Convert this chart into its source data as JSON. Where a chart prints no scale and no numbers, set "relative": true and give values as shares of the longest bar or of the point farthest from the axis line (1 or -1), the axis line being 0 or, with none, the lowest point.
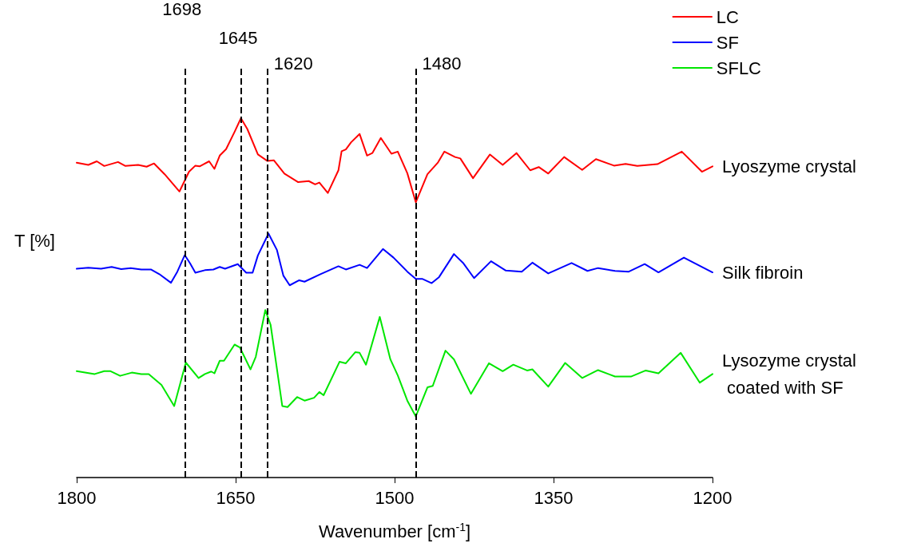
{
  "chart_data": {
    "type": "line",
    "relative": true,
    "xlabel": "Wavenumber [cm$^{-1}$]",
    "ylabel": "T [%]",
    "xlim": [
      1800,
      1200
    ],
    "xticks": [
      1800,
      1650,
      1500,
      1350,
      1200
    ],
    "grid": false,
    "legend": "top right",
    "marker": "none",
    "line_style": "solid",
    "series": [
      {
        "name": "LC",
        "color": "#ff0000",
        "x": [
          1800,
          1789,
          1781,
          1774,
          1761,
          1754,
          1742,
          1734,
          1727,
          1717,
          1703,
          1694,
          1688,
          1684,
          1675,
          1670,
          1665,
          1659,
          1651,
          1645,
          1639,
          1629,
          1620,
          1614,
          1604,
          1591,
          1581,
          1575,
          1571,
          1563,
          1553,
          1550,
          1546,
          1541,
          1533,
          1526,
          1521,
          1513,
          1503,
          1497,
          1488,
          1480,
          1469,
          1459,
          1453,
          1443,
          1438,
          1426,
          1410,
          1398,
          1385,
          1372,
          1364,
          1355,
          1340,
          1323,
          1310,
          1293,
          1282,
          1271,
          1252,
          1229,
          1210,
          1200
        ],
        "values": [
          0.876,
          0.87,
          0.88,
          0.867,
          0.878,
          0.867,
          0.87,
          0.865,
          0.874,
          0.844,
          0.796,
          0.851,
          0.868,
          0.866,
          0.88,
          0.859,
          0.896,
          0.914,
          0.962,
          1,
          0.97,
          0.899,
          0.881,
          0.883,
          0.846,
          0.822,
          0.825,
          0.816,
          0.821,
          0.792,
          0.855,
          0.908,
          0.913,
          0.933,
          0.956,
          0.896,
          0.903,
          0.945,
          0.901,
          0.907,
          0.847,
          0.766,
          0.844,
          0.877,
          0.907,
          0.892,
          0.888,
          0.833,
          0.899,
          0.87,
          0.903,
          0.855,
          0.864,
          0.846,
          0.892,
          0.856,
          0.886,
          0.868,
          0.873,
          0.867,
          0.872,
          0.907,
          0.851,
          0.866
        ]
      },
      {
        "name": "SF",
        "color": "#0000ff",
        "x": [
          1800,
          1789,
          1777,
          1767,
          1758,
          1749,
          1739,
          1730,
          1722,
          1711,
          1705,
          1698,
          1693,
          1688,
          1679,
          1671,
          1665,
          1660,
          1648,
          1640,
          1634,
          1629,
          1619,
          1611,
          1605,
          1599,
          1590,
          1585,
          1570,
          1553,
          1546,
          1533,
          1526,
          1511,
          1501,
          1488,
          1480,
          1474,
          1465,
          1458,
          1444,
          1435,
          1425,
          1409,
          1395,
          1380,
          1370,
          1355,
          1333,
          1318,
          1308,
          1292,
          1279,
          1264,
          1251,
          1227,
          1200
        ],
        "values": [
          0.581,
          0.584,
          0.581,
          0.586,
          0.58,
          0.583,
          0.579,
          0.579,
          0.566,
          0.542,
          0.573,
          0.619,
          0.596,
          0.57,
          0.577,
          0.579,
          0.586,
          0.581,
          0.594,
          0.57,
          0.57,
          0.618,
          0.679,
          0.633,
          0.562,
          0.535,
          0.549,
          0.545,
          0.566,
          0.588,
          0.579,
          0.592,
          0.583,
          0.636,
          0.612,
          0.573,
          0.553,
          0.553,
          0.541,
          0.558,
          0.622,
          0.596,
          0.555,
          0.602,
          0.576,
          0.573,
          0.598,
          0.568,
          0.597,
          0.575,
          0.583,
          0.575,
          0.573,
          0.594,
          0.571,
          0.612,
          0.571
        ]
      },
      {
        "name": "SFLC",
        "color": "#00e600",
        "x": [
          1800,
          1783,
          1774,
          1768,
          1759,
          1748,
          1739,
          1732,
          1720,
          1708,
          1697,
          1685,
          1679,
          1673,
          1670,
          1665,
          1661,
          1651,
          1646,
          1636,
          1631,
          1622,
          1617,
          1606,
          1601,
          1592,
          1585,
          1576,
          1571,
          1567,
          1552,
          1546,
          1537,
          1533,
          1527,
          1514,
          1504,
          1497,
          1488,
          1480,
          1469,
          1464,
          1452,
          1444,
          1428,
          1411,
          1398,
          1388,
          1375,
          1370,
          1355,
          1339,
          1323,
          1308,
          1292,
          1277,
          1263,
          1251,
          1230,
          1212,
          1200
        ],
        "values": [
          0.296,
          0.288,
          0.296,
          0.296,
          0.283,
          0.292,
          0.288,
          0.288,
          0.258,
          0.199,
          0.32,
          0.277,
          0.288,
          0.295,
          0.29,
          0.325,
          0.325,
          0.37,
          0.362,
          0.301,
          0.336,
          0.466,
          0.425,
          0.199,
          0.196,
          0.224,
          0.214,
          0.222,
          0.238,
          0.229,
          0.322,
          0.318,
          0.349,
          0.347,
          0.314,
          0.447,
          0.329,
          0.284,
          0.214,
          0.17,
          0.251,
          0.255,
          0.353,
          0.329,
          0.233,
          0.318,
          0.296,
          0.314,
          0.298,
          0.301,
          0.253,
          0.319,
          0.277,
          0.299,
          0.281,
          0.281,
          0.298,
          0.29,
          0.347,
          0.264,
          0.288
        ]
      }
    ],
    "ref_lines": [
      {
        "axis": "x",
        "value": 1698,
        "label": "1698",
        "color": "#000000",
        "line_style": "dashed"
      },
      {
        "axis": "x",
        "value": 1645,
        "label": "1645",
        "color": "#000000",
        "line_style": "dashed"
      },
      {
        "axis": "x",
        "value": 1620,
        "label": "1620",
        "color": "#000000",
        "line_style": "dashed"
      },
      {
        "axis": "x",
        "value": 1480,
        "label": "1480",
        "color": "#000000",
        "line_style": "dashed"
      }
    ],
    "annotations": [
      "Lyoszyme crystal",
      "Silk fibroin",
      "Lysozyme crystal coated with SF"
    ]
  }
}
